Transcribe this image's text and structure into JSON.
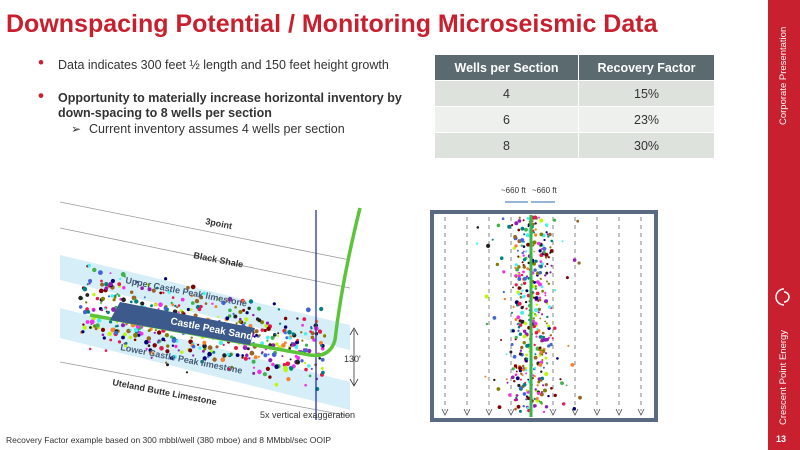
{
  "title": "Downspacing Potential / Monitoring Microseismic Data",
  "bullets": {
    "b1": "Data indicates 300 feet ½ length and 150 feet height growth",
    "b2": "Opportunity to materially increase horizontal inventory by down-spacing to 8 wells per section",
    "sub": "Current inventory assumes 4 wells per section"
  },
  "table": {
    "headers": [
      "Wells per Section",
      "Recovery Factor"
    ],
    "rows": [
      [
        "4",
        "15%"
      ],
      [
        "6",
        "23%"
      ],
      [
        "8",
        "30%"
      ]
    ]
  },
  "cross_section": {
    "labels": {
      "threepoint": "3point",
      "black_shale": "Black Shale",
      "upper_cp": "Upper Castle Peak limestone",
      "castle_peak_sand": "Castle Peak Sand",
      "lower_cp": "Lower Castle Peak limestone",
      "uteland": "Uteland Butte Limestone",
      "height": "130'",
      "exaggeration": "5x vertical exaggeration"
    }
  },
  "map": {
    "spacing_label_left": "~660 ft",
    "spacing_label_right": "~660 ft"
  },
  "footnote": "Recovery Factor example based on 300 mbbl/well (380 mboe) and 8 MMbbl/sec OOIP",
  "sidebar": {
    "corporate": "Corporate Presentation",
    "company": "Crescent Point Energy",
    "page": "13"
  },
  "colors": {
    "brand_red": "#c8202f",
    "table_header": "#5a6a6f"
  }
}
